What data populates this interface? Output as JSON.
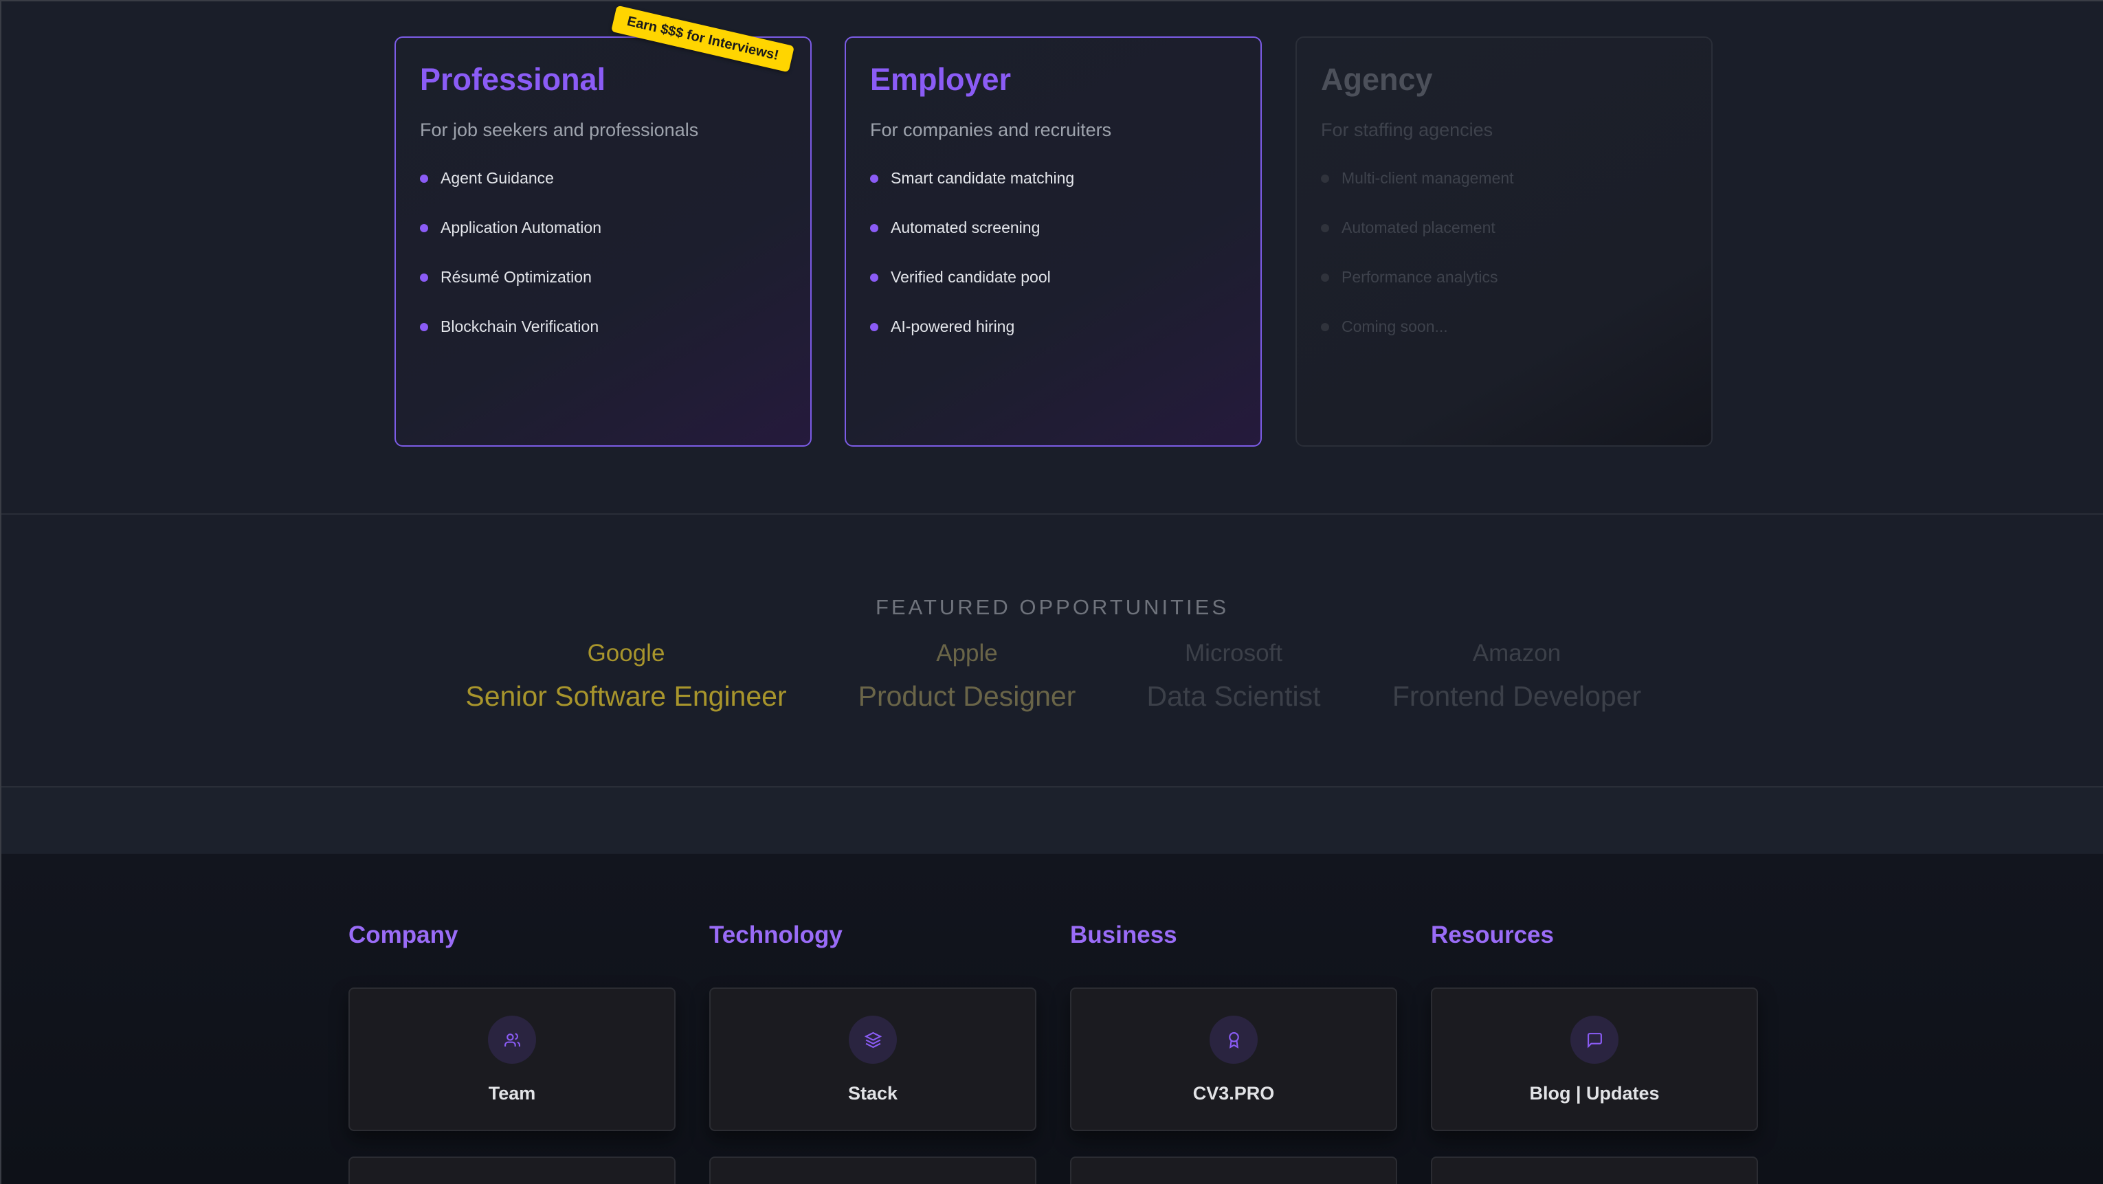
{
  "plans": [
    {
      "title": "Professional",
      "subtitle": "For job seekers and professionals",
      "badge": "Earn $$$ for Interviews!",
      "features": [
        "Agent Guidance",
        "Application Automation",
        "Résumé Optimization",
        "Blockchain Verification"
      ]
    },
    {
      "title": "Employer",
      "subtitle": "For companies and recruiters",
      "features": [
        "Smart candidate matching",
        "Automated screening",
        "Verified candidate pool",
        "AI-powered hiring"
      ]
    },
    {
      "title": "Agency",
      "subtitle": "For staffing agencies",
      "features": [
        "Multi-client management",
        "Automated placement",
        "Performance analytics",
        "Coming soon..."
      ]
    }
  ],
  "featured": {
    "title": "FEATURED OPPORTUNITIES",
    "items": [
      {
        "company": "Google",
        "role": "Senior Software Engineer",
        "color": "#a8952c"
      },
      {
        "company": "Apple",
        "role": "Product Designer",
        "color": "#6a6548"
      },
      {
        "company": "Microsoft",
        "role": "Data Scientist",
        "color": "#3c4049"
      },
      {
        "company": "Amazon",
        "role": "Frontend Developer",
        "color": "#3c4049"
      }
    ]
  },
  "footer": {
    "columns": [
      {
        "heading": "Company",
        "card": "Team",
        "icon": "users-icon"
      },
      {
        "heading": "Technology",
        "card": "Stack",
        "icon": "layers-icon"
      },
      {
        "heading": "Business",
        "card": "CV3.PRO",
        "icon": "award-icon"
      },
      {
        "heading": "Resources",
        "card": "Blog | Updates",
        "icon": "message-square-icon"
      }
    ]
  },
  "colors": {
    "accent": "#8b5cf6",
    "badge": "#ffd500",
    "background": "#1a1e29"
  }
}
